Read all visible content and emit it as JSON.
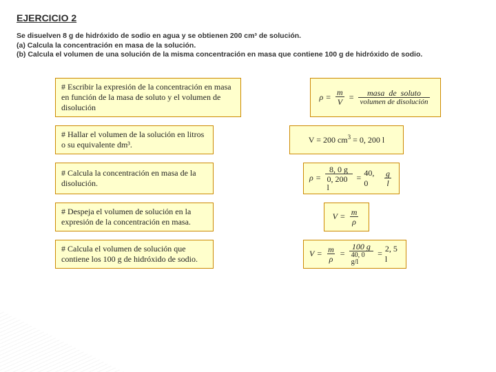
{
  "title": "EJERCICIO 2",
  "problem": {
    "line1": "Se disuelven 8 g de hidróxido de sodio en agua y se obtienen 200 cm³ de solución.",
    "line2": "(a) Calcula la concentración en masa de la solución.",
    "line3": "(b) Calcula el volumen de una solución de la misma concentración en masa que contiene 100 g de hidróxido de sodio."
  },
  "steps": [
    {
      "prompt": "# Escribir la expresión de la concentración en masa en función de la masa de soluto y el volumen de disolución",
      "formula": {
        "lhs_symbol": "ρ",
        "lhs_frac": {
          "num": "m",
          "den": "V"
        },
        "rhs_frac": {
          "num": "masa  de  soluto",
          "den": "volumen de disolución"
        }
      }
    },
    {
      "prompt": "# Hallar el volumen de la solución en litros o su equivalente dm³.",
      "answer_text": "V = 200 cm³ = 0, 200 l"
    },
    {
      "prompt": "# Calcula la concentración en masa de la disolución.",
      "formula": {
        "lhs_symbol": "ρ",
        "frac1": {
          "num": "8, 0 g",
          "den": "0, 200 l"
        },
        "rhs_value": "40, 0",
        "rhs_frac": {
          "num": "g",
          "den": "l"
        }
      }
    },
    {
      "prompt": "# Despeja el volumen de solución en la expresión de la concentración en masa.",
      "formula": {
        "lhs_symbol": "V",
        "rhs_frac": {
          "num": "m",
          "den": "ρ"
        }
      }
    },
    {
      "prompt": "# Calcula el volumen de solución que contiene los 100 g de hidróxido de sodio.",
      "formula": {
        "lhs_symbol": "V",
        "lhs_frac": {
          "num": "m",
          "den": "ρ"
        },
        "mid_frac": {
          "num": "100 g",
          "den": "40, 0 g/l"
        },
        "rhs_value": "2, 5 l"
      }
    }
  ],
  "colors": {
    "box_bg": "#ffffcc",
    "box_border": "#cc8800",
    "text": "#2a2a2a"
  }
}
